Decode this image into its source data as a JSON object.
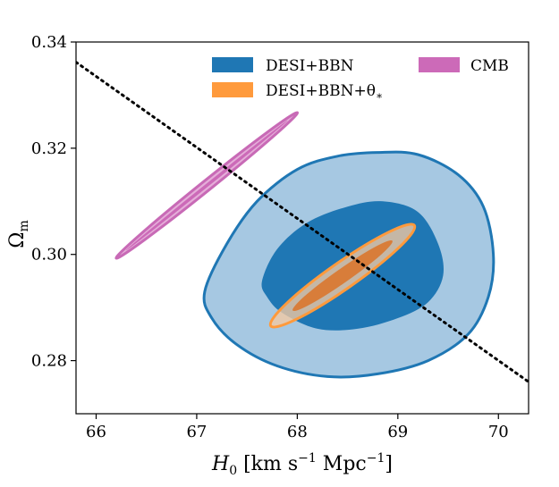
{
  "chart_data": {
    "type": "contour",
    "title": "",
    "xlabel": "H0 [km s-1 Mpc-1]",
    "xlabel_parts": {
      "main": "H",
      "sub": "0",
      "unit_open": " [km s",
      "exp1": "−1",
      "unit_mid": " Mpc",
      "exp2": "−1",
      "unit_close": "]"
    },
    "ylabel": "Ωm",
    "ylabel_parts": {
      "main": "Ω",
      "sub": "m"
    },
    "xlim": [
      65.8,
      70.3
    ],
    "ylim": [
      0.27,
      0.34
    ],
    "xticks": [
      66,
      67,
      68,
      69,
      70
    ],
    "xtick_labels": [
      "66",
      "67",
      "68",
      "69",
      "70"
    ],
    "yticks": [
      0.28,
      0.3,
      0.32,
      0.34
    ],
    "ytick_labels": [
      "0.28",
      "0.30",
      "0.32",
      "0.34"
    ],
    "grid": false,
    "legend_position": "top-right",
    "series": [
      {
        "name": "DESI+BBN",
        "legend_label": "DESI+BBN",
        "inner_color": "#1f77b4",
        "outer_color": "#a6c8e2",
        "edge_color": "#1f77b4",
        "outer_contour": [
          [
            67.08,
            0.293
          ],
          [
            67.3,
            0.302
          ],
          [
            67.6,
            0.31
          ],
          [
            68.0,
            0.316
          ],
          [
            68.4,
            0.3185
          ],
          [
            68.8,
            0.3192
          ],
          [
            69.2,
            0.3188
          ],
          [
            69.6,
            0.315
          ],
          [
            69.85,
            0.309
          ],
          [
            69.95,
            0.3
          ],
          [
            69.9,
            0.292
          ],
          [
            69.7,
            0.285
          ],
          [
            69.3,
            0.28
          ],
          [
            68.8,
            0.2775
          ],
          [
            68.3,
            0.277
          ],
          [
            67.8,
            0.279
          ],
          [
            67.4,
            0.283
          ],
          [
            67.15,
            0.288
          ]
        ],
        "inner_contour": [
          [
            67.65,
            0.295
          ],
          [
            67.8,
            0.301
          ],
          [
            68.1,
            0.306
          ],
          [
            68.5,
            0.309
          ],
          [
            68.85,
            0.31
          ],
          [
            69.2,
            0.308
          ],
          [
            69.4,
            0.302
          ],
          [
            69.45,
            0.296
          ],
          [
            69.3,
            0.291
          ],
          [
            69.0,
            0.288
          ],
          [
            68.6,
            0.286
          ],
          [
            68.2,
            0.286
          ],
          [
            67.85,
            0.289
          ],
          [
            67.7,
            0.292
          ]
        ]
      },
      {
        "name": "DESI+BBN+theta*",
        "legend_label": "DESI+BBN+θ",
        "legend_sub": "∗",
        "inner_color": "#d9772f",
        "outer_color": "#f5c9a1",
        "edge_color": "#ff9a3c",
        "ellipse": {
          "center": [
            68.45,
            0.296
          ],
          "angle_deg": -35,
          "outer_axes": [
            9.8,
            1.48
          ],
          "inner_axes": [
            6.8,
            0.78
          ]
        }
      },
      {
        "name": "CMB",
        "legend_label": "CMB",
        "inner_color": "#cc6ab8",
        "outer_color": "#e2a5d5",
        "edge_color": "#c86ab6",
        "ellipse": {
          "center": [
            67.1,
            0.313
          ],
          "angle_deg": -38.8,
          "outer_axes": [
            13.0,
            0.55
          ],
          "inner_axes": [
            11.6,
            0.18
          ]
        }
      }
    ],
    "reference_line": {
      "style": "dotted",
      "color": "#000000",
      "points": [
        [
          65.8,
          0.3362
        ],
        [
          70.3,
          0.276
        ]
      ]
    }
  }
}
